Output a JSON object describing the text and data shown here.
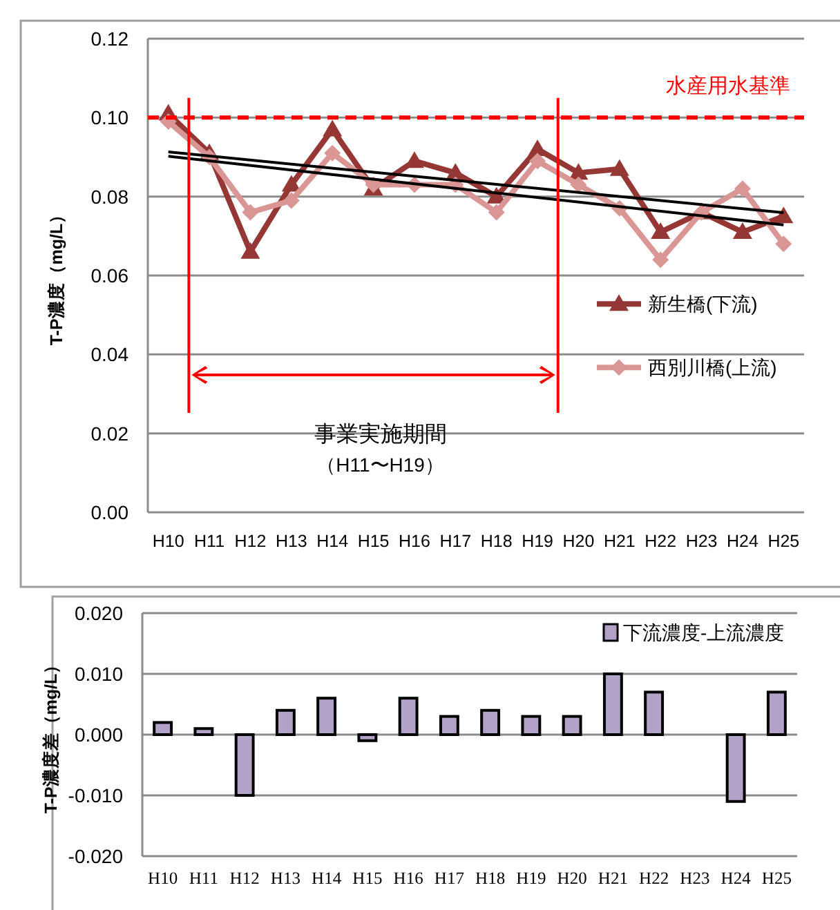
{
  "chart_data": [
    {
      "type": "line",
      "ylabel": "T-P濃度（mg/L）",
      "categories": [
        "H10",
        "H11",
        "H12",
        "H13",
        "H14",
        "H15",
        "H16",
        "H17",
        "H18",
        "H19",
        "H20",
        "H21",
        "H22",
        "H23",
        "H24",
        "H25"
      ],
      "series": [
        {
          "name": "新生橋(下流)",
          "color": "#953735",
          "marker": "triangle",
          "values": [
            0.101,
            0.091,
            0.066,
            0.083,
            0.097,
            0.082,
            0.089,
            0.086,
            0.08,
            0.092,
            0.086,
            0.087,
            0.071,
            0.076,
            0.071,
            0.075
          ]
        },
        {
          "name": "西別川橋(上流)",
          "color": "#d99694",
          "marker": "diamond",
          "values": [
            0.099,
            0.09,
            0.076,
            0.079,
            0.091,
            0.083,
            0.083,
            0.083,
            0.076,
            0.089,
            0.083,
            0.077,
            0.064,
            0.076,
            0.082,
            0.068
          ]
        },
        {
          "color": "#000000",
          "marker": "none",
          "x": [
            "H10",
            "H25"
          ],
          "values": [
            0.0913,
            0.0759
          ]
        },
        {
          "color": "#000000",
          "marker": "none",
          "x": [
            "H10",
            "H25"
          ],
          "values": [
            0.0902,
            0.0728
          ]
        }
      ],
      "ylim": [
        0,
        0.12
      ],
      "yticks": [
        {
          "value": 0,
          "label": "0.00"
        },
        {
          "value": 0.02,
          "label": "0.02"
        },
        {
          "value": 0.04,
          "label": "0.04"
        },
        {
          "value": 0.06,
          "label": "0.06"
        },
        {
          "value": 0.08,
          "label": "0.08"
        },
        {
          "value": 0.1,
          "label": "0.10"
        },
        {
          "value": 0.12,
          "label": "0.12"
        }
      ],
      "ref_lines": [
        {
          "axis": "y",
          "value": 0.1,
          "label": "水産用水基準",
          "color": "#ff0000",
          "line_style": "dashed"
        },
        {
          "axis": "x",
          "value": "H11",
          "color": "#ff0000",
          "line_style": "solid"
        },
        {
          "axis": "x",
          "value": "H20",
          "color": "#ff0000",
          "line_style": "solid"
        }
      ],
      "annotations": [
        "事業実施期間",
        "（H11〜H19）"
      ],
      "grid": "y",
      "legend": "right",
      "line_style": "solid"
    },
    {
      "type": "bar",
      "ylabel": "T-P濃度差（mg/L）",
      "categories": [
        "H10",
        "H11",
        "H12",
        "H13",
        "H14",
        "H15",
        "H16",
        "H17",
        "H18",
        "H19",
        "H20",
        "H21",
        "H22",
        "H23",
        "H24",
        "H25"
      ],
      "series": [
        {
          "name": "下流濃度-上流濃度",
          "color": "#b3a2c7",
          "values": [
            0.002,
            0.001,
            -0.01,
            0.004,
            0.006,
            -0.001,
            0.006,
            0.003,
            0.004,
            0.003,
            0.003,
            0.01,
            0.007,
            0,
            -0.011,
            0.007
          ]
        }
      ],
      "ylim": [
        -0.02,
        0.02
      ],
      "yticks": [
        {
          "value": -0.02,
          "label": "-0.020"
        },
        {
          "value": -0.01,
          "label": "-0.010"
        },
        {
          "value": 0,
          "label": "0.000"
        },
        {
          "value": 0.01,
          "label": "0.010"
        },
        {
          "value": 0.02,
          "label": "0.020"
        }
      ],
      "grid": "y",
      "legend": "top right"
    }
  ]
}
